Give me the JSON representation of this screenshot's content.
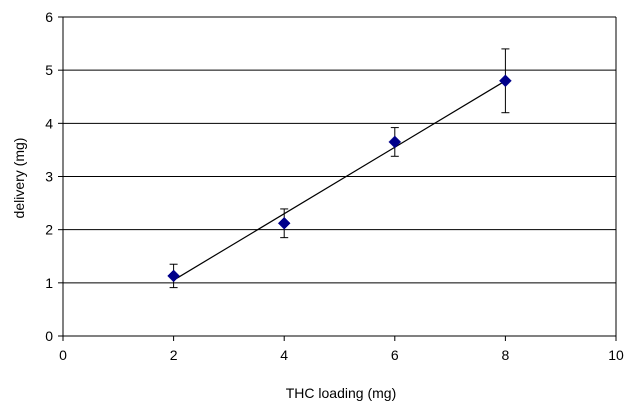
{
  "chart_data": {
    "type": "scatter",
    "title": "",
    "xlabel": "THC loading (mg)",
    "ylabel": "delivery (mg)",
    "xlim": [
      0,
      10
    ],
    "ylim": [
      0,
      6
    ],
    "x_ticks": [
      0,
      2,
      4,
      6,
      8,
      10
    ],
    "y_ticks": [
      0,
      1,
      2,
      3,
      4,
      5,
      6
    ],
    "x_tick_labels": [
      "0",
      "2",
      "4",
      "6",
      "8",
      "10"
    ],
    "y_tick_labels": [
      "0",
      "1",
      "2",
      "3",
      "4",
      "5",
      "6"
    ],
    "grid": "horizontal",
    "legend": "none",
    "marker": "diamond",
    "series": [
      {
        "x": [
          2,
          4,
          6,
          8
        ],
        "y": [
          1.13,
          2.12,
          3.65,
          4.8
        ],
        "error": [
          0.22,
          0.27,
          0.27,
          0.6
        ],
        "color": "#00008b"
      }
    ],
    "trendline": {
      "type": "linear",
      "x": [
        2,
        8
      ],
      "y": [
        1.05,
        4.8
      ]
    }
  },
  "colors": {
    "marker": "#00008b",
    "axis": "#000000",
    "grid": "#000000",
    "background": "#ffffff"
  }
}
